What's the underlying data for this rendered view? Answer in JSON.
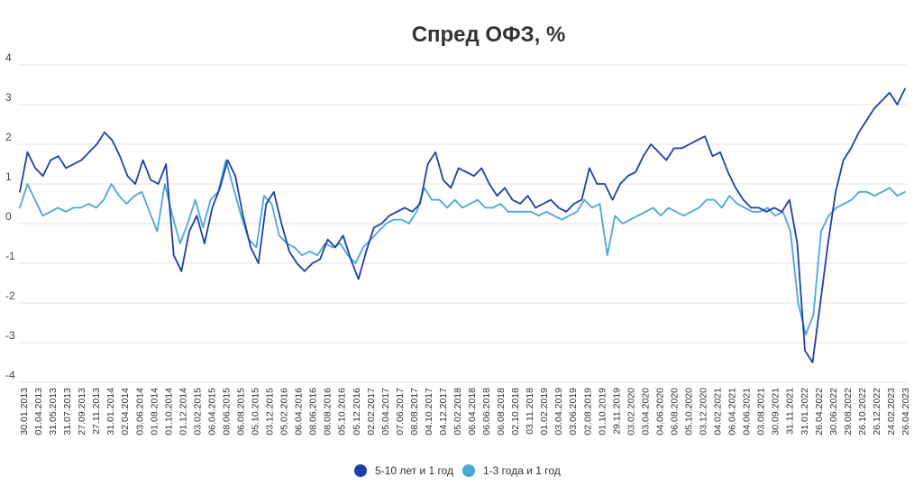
{
  "chart_data": {
    "type": "line",
    "title": "Спред ОФЗ, %",
    "xlabel": "",
    "ylabel": "",
    "ylim": [
      -4,
      4
    ],
    "y_ticks": [
      "4",
      "3",
      "2",
      "1",
      "0",
      "-1",
      "-2",
      "-3",
      "-4"
    ],
    "grid": true,
    "legend": "bottom-center",
    "x_ticks": [
      "30.01.2013",
      "01.04.2013",
      "31.05.2013",
      "31.07.2013",
      "27.09.2013",
      "27.11.2013",
      "31.01.2014",
      "02.04.2014",
      "03.06.2014",
      "01.08.2014",
      "01.10.2014",
      "01.12.2014",
      "03.02.2015",
      "06.04.2015",
      "08.06.2015",
      "06.08.2015",
      "05.10.2015",
      "03.12.2015",
      "05.02.2016",
      "06.04.2016",
      "08.06.2016",
      "08.08.2016",
      "05.10.2016",
      "05.12.2016",
      "02.02.2017",
      "05.04.2017",
      "07.06.2017",
      "08.08.2017",
      "04.10.2017",
      "04.12.2017",
      "05.02.2018",
      "06.04.2018",
      "06.06.2018",
      "06.08.2018",
      "02.10.2018",
      "03.11.2018",
      "01.02.2019",
      "03.04.2019",
      "03.06.2019",
      "02.08.2019",
      "01.10.2019",
      "29.11.2019",
      "03.02.2020",
      "03.04.2020",
      "04.06.2020",
      "06.08.2020",
      "05.10.2020",
      "03.12.2020",
      "04.02.2021",
      "06.04.2021",
      "04.06.2021",
      "03.08.2021",
      "30.09.2021",
      "31.11.2021",
      "31.01.2022",
      "26.04.2022",
      "30.06.2022",
      "29.08.2022",
      "26.10.2022",
      "26.12.2022",
      "24.02.2023",
      "26.04.2023"
    ],
    "series": [
      {
        "name": "5-10 лет и 1 год",
        "color": "#1f3fa8",
        "values": [
          0.8,
          1.8,
          1.4,
          1.2,
          1.6,
          1.7,
          1.4,
          1.5,
          1.6,
          1.8,
          2.0,
          2.3,
          2.1,
          1.7,
          1.2,
          1.0,
          1.6,
          1.1,
          1.0,
          1.5,
          -0.8,
          -1.2,
          -0.2,
          0.2,
          -0.5,
          0.4,
          0.9,
          1.6,
          1.2,
          0.2,
          -0.6,
          -1.0,
          0.5,
          0.8,
          0.0,
          -0.7,
          -1.0,
          -1.2,
          -1.0,
          -0.9,
          -0.4,
          -0.6,
          -0.3,
          -0.9,
          -1.4,
          -0.7,
          -0.1,
          0.0,
          0.2,
          0.3,
          0.4,
          0.3,
          0.5,
          1.5,
          1.8,
          1.1,
          0.9,
          1.4,
          1.3,
          1.2,
          1.4,
          1.0,
          0.7,
          0.9,
          0.6,
          0.5,
          0.7,
          0.4,
          0.5,
          0.6,
          0.4,
          0.3,
          0.5,
          0.6,
          1.4,
          1.0,
          1.0,
          0.6,
          1.0,
          1.2,
          1.3,
          1.7,
          2.0,
          1.8,
          1.6,
          1.9,
          1.9,
          2.0,
          2.1,
          2.2,
          1.7,
          1.8,
          1.3,
          0.9,
          0.6,
          0.4,
          0.4,
          0.3,
          0.4,
          0.3,
          0.6,
          -0.5,
          -3.2,
          -3.5,
          -2.0,
          -0.5,
          0.8,
          1.6,
          1.9,
          2.3,
          2.6,
          2.9,
          3.1,
          3.3,
          3.0,
          3.4
        ]
      },
      {
        "name": "1-3 года и 1 год",
        "color": "#4aa8d8",
        "values": [
          0.4,
          1.0,
          0.6,
          0.2,
          0.3,
          0.4,
          0.3,
          0.4,
          0.4,
          0.5,
          0.4,
          0.6,
          1.0,
          0.7,
          0.5,
          0.7,
          0.8,
          0.3,
          -0.2,
          1.0,
          0.2,
          -0.5,
          0.0,
          0.6,
          -0.1,
          0.6,
          0.8,
          1.6,
          0.9,
          0.2,
          -0.4,
          -0.6,
          0.7,
          0.5,
          -0.3,
          -0.5,
          -0.6,
          -0.8,
          -0.7,
          -0.8,
          -0.5,
          -0.6,
          -0.5,
          -0.8,
          -1.0,
          -0.6,
          -0.4,
          -0.2,
          0.0,
          0.1,
          0.1,
          0.0,
          0.3,
          0.9,
          0.6,
          0.6,
          0.4,
          0.6,
          0.4,
          0.5,
          0.6,
          0.4,
          0.4,
          0.5,
          0.3,
          0.3,
          0.3,
          0.3,
          0.2,
          0.3,
          0.2,
          0.1,
          0.2,
          0.3,
          0.6,
          0.4,
          0.5,
          -0.8,
          0.2,
          0.0,
          0.1,
          0.2,
          0.3,
          0.4,
          0.2,
          0.4,
          0.3,
          0.2,
          0.3,
          0.4,
          0.6,
          0.6,
          0.4,
          0.7,
          0.5,
          0.4,
          0.3,
          0.3,
          0.4,
          0.2,
          0.3,
          -0.2,
          -2.0,
          -2.8,
          -2.3,
          -0.2,
          0.2,
          0.4,
          0.5,
          0.6,
          0.8,
          0.8,
          0.7,
          0.8,
          0.9,
          0.7,
          0.8
        ]
      }
    ]
  }
}
